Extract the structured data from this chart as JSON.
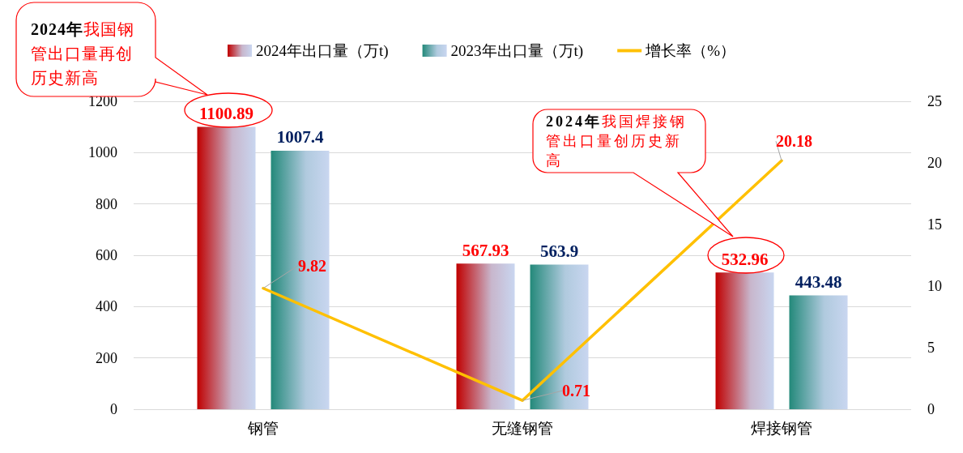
{
  "chart_data": {
    "type": "bar",
    "categories": [
      "钢管",
      "无缝钢管",
      "焊接钢管"
    ],
    "series": [
      {
        "name": "2024年出口量（万t)",
        "color": "#c00000",
        "values": [
          1100.89,
          567.93,
          532.96
        ]
      },
      {
        "name": "2023年出口量（万t)",
        "color": "#23897a",
        "values": [
          1007.4,
          563.9,
          443.48
        ]
      },
      {
        "name": "增长率（%）",
        "type": "line",
        "axis": "y2",
        "color": "#ffc000",
        "values": [
          9.82,
          0.71,
          20.18
        ]
      }
    ],
    "ylim": [
      0,
      1200
    ],
    "yticks": [
      0,
      200,
      400,
      600,
      800,
      1000,
      1200
    ],
    "y2lim": [
      0,
      25
    ],
    "y2ticks": [
      0,
      5,
      10,
      15,
      20,
      25
    ],
    "grid": "y",
    "legend": "top",
    "data_labels": true,
    "marker": "none",
    "annotations": [
      "2024年我国钢管出口量再创历史新高",
      "2024年我国焊接钢管出口量创历史新高"
    ]
  }
}
